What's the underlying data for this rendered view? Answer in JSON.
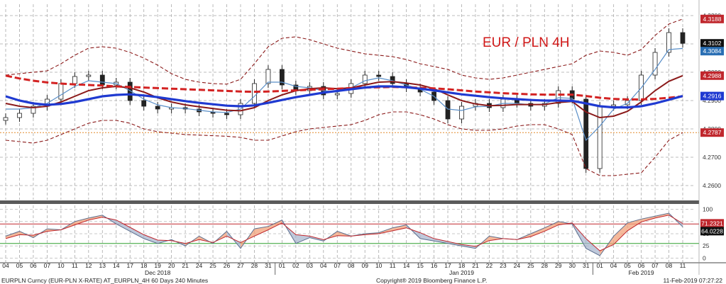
{
  "chart_data": {
    "type": "line",
    "title": "EUR / PLN 4H",
    "upper_panel": {
      "ylim": [
        4.255,
        4.324
      ],
      "y_ticks": [
        4.26,
        4.27,
        4.28,
        4.29,
        4.3,
        4.31,
        4.32
      ],
      "tick_labels": [
        "4.2600",
        "4.2700",
        "4.2800",
        "4.2900",
        "4.3000",
        "4.3100",
        "4.3200"
      ],
      "price_tags": [
        {
          "label": "4.3188",
          "value": 4.3188,
          "color": "#c0272d"
        },
        {
          "label": "4.3102",
          "value": 4.3102,
          "color": "#101010"
        },
        {
          "label": "4.3084",
          "value": 4.3084,
          "color": "#2a6fb4"
        },
        {
          "label": "4.2988",
          "value": 4.2988,
          "color": "#c0272d"
        },
        {
          "label": "4.2916",
          "value": 4.2916,
          "color": "#1f3ad1"
        },
        {
          "label": "4.2787",
          "value": 4.2787,
          "color": "#c0272d"
        }
      ],
      "reference_level": 4.2787,
      "series": [
        {
          "key": "close",
          "color": "#222222"
        },
        {
          "key": "ma_fast",
          "color": "#5a8fc8"
        },
        {
          "key": "ma_mid",
          "color": "#8b1a1a"
        },
        {
          "key": "ma_slow_blue",
          "color": "#1f3ad1"
        },
        {
          "key": "ma_slow_red",
          "color": "#d32222"
        },
        {
          "key": "band_upper",
          "color": "#8b1a1a"
        },
        {
          "key": "band_lower",
          "color": "#8b1a1a"
        }
      ]
    },
    "lower_panel": {
      "ylim": [
        -8,
        108
      ],
      "y_ticks": [
        0,
        25,
        50,
        75,
        100
      ],
      "tick_labels": [
        "0",
        "25",
        "50",
        "75",
        "100"
      ],
      "levels": [
        {
          "value": 70,
          "color": "#c0272d"
        },
        {
          "value": 30,
          "color": "#2ea02e"
        }
      ],
      "value_tags": [
        {
          "label": "71.2321",
          "value": 71.2321,
          "color": "#c0272d"
        },
        {
          "label": "64.0228",
          "value": 64.0228,
          "color": "#101010"
        }
      ]
    },
    "x_axis": {
      "day_labels": [
        "04",
        "05",
        "06",
        "07",
        "10",
        "11",
        "12",
        "13",
        "14",
        "17",
        "18",
        "19",
        "20",
        "21",
        "24",
        "25",
        "26",
        "27",
        "28",
        "31",
        "01",
        "02",
        "03",
        "04",
        "07",
        "08",
        "09",
        "10",
        "11",
        "14",
        "15",
        "16",
        "17",
        "18",
        "21",
        "22",
        "23",
        "24",
        "25",
        "28",
        "29",
        "30",
        "31",
        "01",
        "04",
        "05",
        "06",
        "07",
        "08",
        "11"
      ],
      "month_labels": [
        {
          "label": "Dec 2018",
          "index": 11
        },
        {
          "label": "Jan 2019",
          "index": 33
        },
        {
          "label": "Feb 2019",
          "index": 46
        }
      ]
    },
    "points": [
      {
        "d": 0,
        "c": 4.284
      },
      {
        "d": 1,
        "c": 4.2855
      },
      {
        "d": 2,
        "c": 4.288
      },
      {
        "d": 3,
        "c": 4.2905
      },
      {
        "d": 4,
        "c": 4.296
      },
      {
        "d": 5,
        "c": 4.2985
      },
      {
        "d": 6,
        "c": 4.299
      },
      {
        "d": 7,
        "c": 4.2955
      },
      {
        "d": 8,
        "c": 4.2965
      },
      {
        "d": 9,
        "c": 4.29
      },
      {
        "d": 10,
        "c": 4.288
      },
      {
        "d": 11,
        "c": 4.287
      },
      {
        "d": 12,
        "c": 4.2875
      },
      {
        "d": 13,
        "c": 4.287
      },
      {
        "d": 14,
        "c": 4.286
      },
      {
        "d": 15,
        "c": 4.2855
      },
      {
        "d": 16,
        "c": 4.285
      },
      {
        "d": 17,
        "c": 4.289
      },
      {
        "d": 18,
        "c": 4.296
      },
      {
        "d": 19,
        "c": 4.301
      },
      {
        "d": 20,
        "c": 4.2955
      },
      {
        "d": 21,
        "c": 4.2935
      },
      {
        "d": 22,
        "c": 4.295
      },
      {
        "d": 23,
        "c": 4.292
      },
      {
        "d": 24,
        "c": 4.2925
      },
      {
        "d": 25,
        "c": 4.296
      },
      {
        "d": 26,
        "c": 4.299
      },
      {
        "d": 27,
        "c": 4.2985
      },
      {
        "d": 28,
        "c": 4.296
      },
      {
        "d": 29,
        "c": 4.2945
      },
      {
        "d": 30,
        "c": 4.293
      },
      {
        "d": 31,
        "c": 4.29
      },
      {
        "d": 32,
        "c": 4.2835
      },
      {
        "d": 33,
        "c": 4.288
      },
      {
        "d": 34,
        "c": 4.289
      },
      {
        "d": 35,
        "c": 4.2875
      },
      {
        "d": 36,
        "c": 4.2905
      },
      {
        "d": 37,
        "c": 4.289
      },
      {
        "d": 38,
        "c": 4.288
      },
      {
        "d": 39,
        "c": 4.289
      },
      {
        "d": 40,
        "c": 4.2935
      },
      {
        "d": 41,
        "c": 4.2905
      },
      {
        "d": 42,
        "c": 4.266
      },
      {
        "d": 43,
        "c": 4.288
      },
      {
        "d": 44,
        "c": 4.2885
      },
      {
        "d": 45,
        "c": 4.29
      },
      {
        "d": 46,
        "c": 4.299
      },
      {
        "d": 47,
        "c": 4.307
      },
      {
        "d": 48,
        "c": 4.314
      },
      {
        "d": 49,
        "c": 4.3102
      }
    ],
    "ma_fast": [
      4.287,
      4.287,
      4.2875,
      4.289,
      4.292,
      4.295,
      4.297,
      4.2965,
      4.296,
      4.2935,
      4.2905,
      4.2885,
      4.2875,
      4.2872,
      4.2866,
      4.286,
      4.2858,
      4.287,
      4.2915,
      4.2965,
      4.2965,
      4.295,
      4.2945,
      4.2935,
      4.293,
      4.2945,
      4.297,
      4.298,
      4.297,
      4.2955,
      4.294,
      4.2915,
      4.287,
      4.2865,
      4.2878,
      4.288,
      4.289,
      4.289,
      4.2885,
      4.2888,
      4.291,
      4.2908,
      4.276,
      4.281,
      4.287,
      4.289,
      4.2945,
      4.301,
      4.308,
      4.3084
    ],
    "ma_mid": [
      4.289,
      4.288,
      4.2875,
      4.288,
      4.2895,
      4.2915,
      4.2935,
      4.2945,
      4.295,
      4.2945,
      4.293,
      4.291,
      4.2895,
      4.2885,
      4.2878,
      4.2872,
      4.2866,
      4.2864,
      4.2875,
      4.29,
      4.292,
      4.2935,
      4.2942,
      4.2945,
      4.2942,
      4.2945,
      4.2955,
      4.2965,
      4.2967,
      4.2962,
      4.2955,
      4.2942,
      4.292,
      4.29,
      4.2888,
      4.2882,
      4.2883,
      4.2886,
      4.2886,
      4.2886,
      4.2893,
      4.2897,
      4.286,
      4.284,
      4.2845,
      4.2862,
      4.2895,
      4.2935,
      4.2968,
      4.2988
    ],
    "ma_slow_blue": [
      4.2915,
      4.29,
      4.289,
      4.2885,
      4.2888,
      4.2895,
      4.2905,
      4.2915,
      4.292,
      4.2922,
      4.2918,
      4.2912,
      4.2905,
      4.2898,
      4.2892,
      4.2887,
      4.2882,
      4.288,
      4.2883,
      4.2892,
      4.2902,
      4.2912,
      4.292,
      4.2928,
      4.2934,
      4.294,
      4.2946,
      4.295,
      4.295,
      4.2947,
      4.2942,
      4.2936,
      4.2929,
      4.2922,
      4.2917,
      4.2912,
      4.2908,
      4.2905,
      4.2902,
      4.29,
      4.29,
      4.2899,
      4.289,
      4.288,
      4.2876,
      4.2876,
      4.288,
      4.289,
      4.2903,
      4.2916
    ],
    "ma_slow_red": [
      4.2988,
      4.2978,
      4.297,
      4.2964,
      4.296,
      4.2957,
      4.2955,
      4.2953,
      4.295,
      4.2948,
      4.2946,
      4.2944,
      4.2942,
      4.294,
      4.2938,
      4.2936,
      4.2934,
      4.2932,
      4.2931,
      4.2932,
      4.2934,
      4.2936,
      4.2938,
      4.294,
      4.2942,
      4.2944,
      4.2946,
      4.2947,
      4.2948,
      4.2947,
      4.2945,
      4.2943,
      4.294,
      4.2936,
      4.2932,
      4.2929,
      4.2926,
      4.2924,
      4.2922,
      4.2921,
      4.2921,
      4.2921,
      4.2916,
      4.291,
      4.2906,
      4.2904,
      4.2904,
      4.2906,
      4.291,
      4.2915
    ],
    "band_upper": [
      4.299,
      4.2995,
      4.3,
      4.3005,
      4.303,
      4.306,
      4.3085,
      4.309,
      4.3085,
      4.307,
      4.305,
      4.3025,
      4.2995,
      4.2975,
      4.2965,
      4.296,
      4.2958,
      4.2975,
      4.303,
      4.309,
      4.312,
      4.3125,
      4.3115,
      4.31,
      4.3085,
      4.3075,
      4.3065,
      4.306,
      4.3055,
      4.3045,
      4.303,
      4.302,
      4.301,
      4.299,
      4.298,
      4.2975,
      4.298,
      4.299,
      4.3,
      4.301,
      4.302,
      4.303,
      4.306,
      4.3075,
      4.307,
      4.306,
      4.308,
      4.313,
      4.317,
      4.3188
    ],
    "band_lower": [
      4.276,
      4.2755,
      4.275,
      4.276,
      4.278,
      4.28,
      4.282,
      4.283,
      4.283,
      4.282,
      4.28,
      4.279,
      4.2785,
      4.278,
      4.2778,
      4.2776,
      4.2774,
      4.277,
      4.276,
      4.276,
      4.2775,
      4.279,
      4.28,
      4.2805,
      4.281,
      4.2815,
      4.283,
      4.285,
      4.286,
      4.286,
      4.285,
      4.2835,
      4.2815,
      4.28,
      4.2795,
      4.2795,
      4.28,
      4.281,
      4.2815,
      4.2815,
      4.28,
      4.278,
      4.266,
      4.2635,
      4.2635,
      4.264,
      4.2645,
      4.27,
      4.276,
      4.2787
    ],
    "oscillator_k": [
      45,
      55,
      42,
      60,
      58,
      75,
      82,
      88,
      70,
      55,
      40,
      30,
      38,
      25,
      45,
      30,
      55,
      20,
      60,
      65,
      78,
      30,
      42,
      35,
      55,
      45,
      50,
      52,
      62,
      68,
      40,
      35,
      30,
      25,
      20,
      45,
      40,
      38,
      50,
      62,
      75,
      70,
      20,
      5,
      45,
      72,
      80,
      86,
      92,
      64
    ],
    "oscillator_d": [
      40,
      48,
      47,
      55,
      58,
      68,
      78,
      84,
      78,
      63,
      48,
      37,
      36,
      30,
      38,
      32,
      45,
      32,
      45,
      58,
      72,
      48,
      45,
      38,
      46,
      45,
      48,
      50,
      56,
      62,
      52,
      40,
      34,
      28,
      24,
      36,
      40,
      38,
      44,
      55,
      68,
      72,
      40,
      15,
      28,
      56,
      74,
      82,
      88,
      71
    ]
  },
  "footer": {
    "left": "EURPLN Curncy (EUR-PLN X-RATE) AT_EURPLN_4H 60 Days 240 Minutes",
    "center": "Copyright® 2019 Bloomberg Finance L.P.",
    "right": "11-Feb-2019 07:27:22"
  }
}
